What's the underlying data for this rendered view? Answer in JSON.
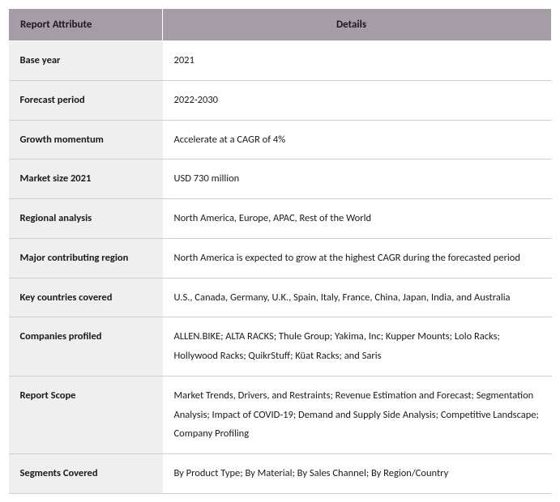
{
  "table": {
    "header_bg": "#a69ca8",
    "attr_bg": "#efeff0",
    "val_bg": "#ffffff",
    "border_color": "#d0d0d0",
    "font_size_header": 13,
    "font_size_body": 12.5,
    "columns": [
      "Report Attribute",
      "Details"
    ],
    "rows": [
      {
        "attr": "Base year",
        "val": "2021"
      },
      {
        "attr": "Forecast period",
        "val": "2022-2030"
      },
      {
        "attr": "Growth momentum",
        "val": "Accelerate at a CAGR of 4%"
      },
      {
        "attr": "Market size 2021",
        "val": "USD 730 million"
      },
      {
        "attr": "Regional analysis",
        "val": "North America, Europe, APAC, Rest of the World"
      },
      {
        "attr": "Major contributing region",
        "val": "North America is expected to grow at the highest CAGR during the forecasted period"
      },
      {
        "attr": "Key countries covered",
        "val": "U.S., Canada, Germany, U.K., Spain, Italy, France, China, Japan, India, and Australia"
      },
      {
        "attr": "Companies profiled",
        "val": "ALLEN.BIKE; ALTA RACKS; Thule Group; Yakima, Inc; Kupper Mounts; Lolo Racks; Hollywood Racks; QuikrStuff; Küat Racks; and Saris"
      },
      {
        "attr": "Report Scope",
        "val": "Market Trends, Drivers, and Restraints; Revenue Estimation and Forecast; Segmentation Analysis; Impact of COVID-19; Demand and Supply Side Analysis; Competitive Landscape; Company Profiling"
      },
      {
        "attr": "Segments Covered",
        "val": "By Product Type; By Material; By Sales Channel; By Region/Country"
      }
    ]
  }
}
